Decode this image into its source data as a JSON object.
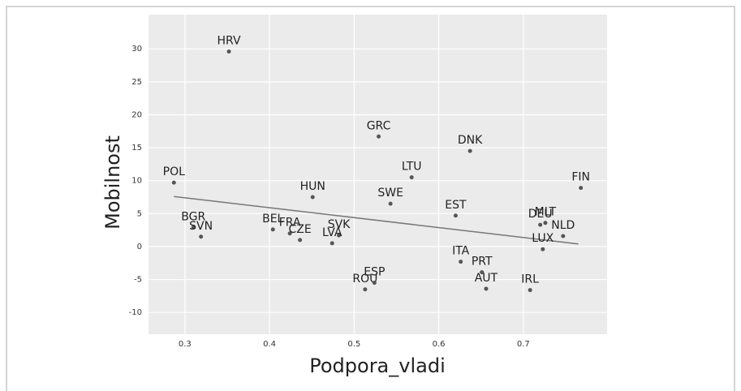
{
  "chart_data": {
    "type": "scatter",
    "xlabel": "Podpora_vladi",
    "ylabel": "Mobilnost",
    "categories": [
      "HRV",
      "POL",
      "BGR",
      "SVN",
      "HUN",
      "BEL",
      "FRA",
      "CZE",
      "SVK",
      "LVA",
      "GRC",
      "LTU",
      "SWE",
      "DNK",
      "EST",
      "ROU",
      "ESP",
      "ITA",
      "PRT",
      "AUT",
      "IRL",
      "LUX",
      "NLD",
      "DEU",
      "MLT",
      "FIN"
    ],
    "x": [
      0.352,
      0.287,
      0.31,
      0.319,
      0.451,
      0.404,
      0.424,
      0.436,
      0.482,
      0.474,
      0.529,
      0.568,
      0.543,
      0.637,
      0.62,
      0.513,
      0.524,
      0.626,
      0.651,
      0.656,
      0.708,
      0.723,
      0.747,
      0.72,
      0.726,
      0.768
    ],
    "values": [
      29.6,
      9.7,
      2.9,
      1.5,
      7.5,
      2.6,
      2.0,
      1.0,
      1.7,
      0.5,
      16.7,
      10.5,
      6.5,
      14.5,
      4.7,
      -6.5,
      -5.5,
      -2.3,
      -3.9,
      -6.4,
      -6.6,
      -0.4,
      1.6,
      3.3,
      3.6,
      8.9
    ],
    "color": "#555555",
    "trend": {
      "x": [
        0.287,
        0.765
      ],
      "values": [
        7.6,
        0.4
      ],
      "color": "#777777"
    },
    "xlim": [
      0.257,
      0.799
    ],
    "ylim": [
      -13.3,
      35.2
    ],
    "xticks": [
      0.3,
      0.4,
      0.5,
      0.6,
      0.7
    ],
    "yticks": [
      -10,
      -5,
      0,
      5,
      10,
      15,
      20,
      25,
      30
    ],
    "grid": true
  }
}
